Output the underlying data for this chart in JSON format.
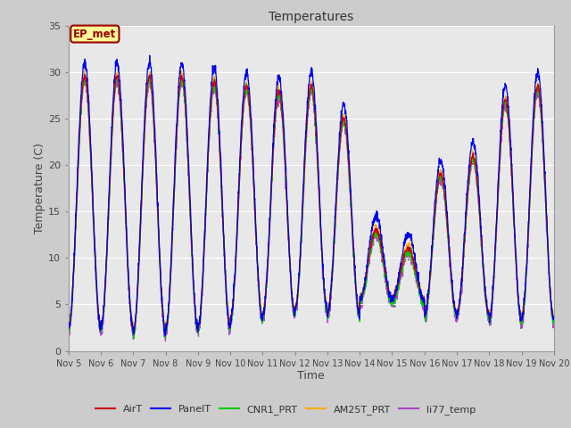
{
  "title": "Temperatures",
  "xlabel": "Time",
  "ylabel": "Temperature (C)",
  "ylim": [
    0,
    35
  ],
  "n_days": 15,
  "x_tick_labels": [
    "Nov 5",
    "Nov 6",
    "Nov 7",
    "Nov 8",
    "Nov 9",
    "Nov 10",
    "Nov 11",
    "Nov 12",
    "Nov 13",
    "Nov 14",
    "Nov 15",
    "Nov 16",
    "Nov 17",
    "Nov 18",
    "Nov 19",
    "Nov 20"
  ],
  "yticks": [
    0,
    5,
    10,
    15,
    20,
    25,
    30,
    35
  ],
  "legend_entries": [
    "AirT",
    "PanelT",
    "CNR1_PRT",
    "AM25T_PRT",
    "li77_temp"
  ],
  "legend_colors": [
    "#cc0000",
    "#0000ee",
    "#00cc00",
    "#ffaa00",
    "#aa44cc"
  ],
  "annotation_text": "EP_met",
  "annotation_color": "#990000",
  "annotation_bg": "#ffff99",
  "fig_bg": "#cccccc",
  "plot_bg": "#e8e8e8",
  "grid_color": "#ffffff",
  "pts_per_day": 144,
  "seed": 42
}
